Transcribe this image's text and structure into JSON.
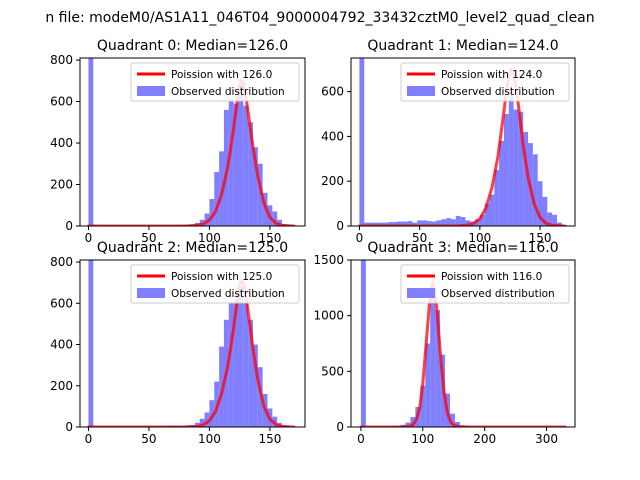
{
  "page": {
    "suptitle": "n file: modeM0/AS1A11_046T04_9000004792_33432cztM0_level2_quad_clean"
  },
  "colors": {
    "histogram": "#7f7fff",
    "poisson": "#ff0000",
    "axes": "#000000",
    "background": "#ffffff"
  },
  "chart_data": [
    {
      "type": "bar",
      "title": "Quadrant 0: Median=126.0",
      "xlabel": "",
      "ylabel": "",
      "xlim": [
        -7,
        179
      ],
      "ylim": [
        0,
        810
      ],
      "xticks": [
        0,
        50,
        100,
        150
      ],
      "yticks": [
        0,
        200,
        400,
        600,
        800
      ],
      "grid": false,
      "legend": {
        "placement": "top-right",
        "entries": [
          "Poission with 126.0",
          "Observed distribution"
        ]
      },
      "series": [
        {
          "name": "Poission with 126.0",
          "kind": "line",
          "x": [
            0,
            80,
            90,
            95,
            100,
            105,
            110,
            115,
            118,
            120,
            122,
            124,
            126,
            128,
            130,
            132,
            134,
            136,
            140,
            145,
            150,
            155,
            160,
            170
          ],
          "y": [
            0,
            0,
            3,
            10,
            28,
            70,
            150,
            280,
            390,
            470,
            560,
            650,
            700,
            690,
            630,
            550,
            460,
            380,
            240,
            110,
            42,
            13,
            3,
            0
          ]
        },
        {
          "name": "Observed distribution",
          "kind": "histogram",
          "bin_width": 4,
          "x": [
            0,
            4,
            8,
            12,
            16,
            20,
            24,
            28,
            32,
            36,
            40,
            44,
            48,
            52,
            56,
            60,
            64,
            68,
            72,
            76,
            80,
            84,
            88,
            92,
            96,
            100,
            104,
            108,
            112,
            116,
            120,
            124,
            128,
            132,
            136,
            140,
            144,
            148,
            152,
            156,
            160,
            164,
            168
          ],
          "y": [
            810,
            3,
            3,
            3,
            3,
            3,
            3,
            3,
            3,
            3,
            3,
            3,
            3,
            3,
            3,
            3,
            3,
            3,
            4,
            4,
            5,
            8,
            15,
            30,
            60,
            130,
            260,
            360,
            560,
            600,
            590,
            680,
            580,
            500,
            380,
            300,
            160,
            100,
            70,
            30,
            10,
            4,
            2
          ]
        }
      ]
    },
    {
      "type": "bar",
      "title": "Quadrant 1: Median=124.0",
      "xlabel": "",
      "ylabel": "",
      "xlim": [
        -7,
        179
      ],
      "ylim": [
        0,
        750
      ],
      "xticks": [
        0,
        50,
        100,
        150
      ],
      "yticks": [
        0,
        200,
        400,
        600
      ],
      "grid": false,
      "legend": {
        "placement": "top-right",
        "entries": [
          "Poission with 124.0",
          "Observed distribution"
        ]
      },
      "series": [
        {
          "name": "Poission with 124.0",
          "kind": "line",
          "x": [
            0,
            80,
            90,
            95,
            100,
            105,
            110,
            115,
            118,
            120,
            122,
            124,
            126,
            128,
            130,
            132,
            134,
            136,
            140,
            145,
            150,
            155,
            160,
            170
          ],
          "y": [
            0,
            0,
            4,
            12,
            32,
            80,
            170,
            310,
            430,
            510,
            600,
            670,
            700,
            680,
            620,
            540,
            450,
            360,
            220,
            100,
            38,
            12,
            3,
            0
          ]
        },
        {
          "name": "Observed distribution",
          "kind": "histogram",
          "bin_width": 4,
          "x": [
            0,
            4,
            8,
            12,
            16,
            20,
            24,
            28,
            32,
            36,
            40,
            44,
            48,
            52,
            56,
            60,
            64,
            68,
            72,
            76,
            80,
            84,
            88,
            92,
            96,
            100,
            104,
            108,
            112,
            116,
            120,
            124,
            128,
            132,
            136,
            140,
            144,
            148,
            152,
            156,
            160,
            164,
            168
          ],
          "y": [
            750,
            15,
            15,
            15,
            15,
            15,
            18,
            18,
            20,
            20,
            22,
            15,
            25,
            25,
            22,
            20,
            25,
            30,
            35,
            30,
            45,
            40,
            25,
            20,
            30,
            50,
            100,
            140,
            250,
            380,
            500,
            610,
            520,
            510,
            420,
            370,
            320,
            200,
            130,
            60,
            50,
            15,
            5
          ]
        }
      ]
    },
    {
      "type": "bar",
      "title": "Quadrant 2: Median=125.0",
      "xlabel": "",
      "ylabel": "",
      "xlim": [
        -7,
        179
      ],
      "ylim": [
        0,
        810
      ],
      "xticks": [
        0,
        50,
        100,
        150
      ],
      "yticks": [
        0,
        200,
        400,
        600,
        800
      ],
      "grid": false,
      "legend": {
        "placement": "top-right",
        "entries": [
          "Poission with 125.0",
          "Observed distribution"
        ]
      },
      "series": [
        {
          "name": "Poission with 125.0",
          "kind": "line",
          "x": [
            0,
            80,
            90,
            95,
            100,
            105,
            110,
            115,
            118,
            120,
            122,
            124,
            126,
            128,
            130,
            132,
            134,
            136,
            140,
            145,
            150,
            155,
            160,
            170
          ],
          "y": [
            0,
            0,
            3,
            10,
            30,
            75,
            160,
            290,
            400,
            480,
            570,
            660,
            710,
            700,
            640,
            560,
            470,
            380,
            230,
            100,
            38,
            12,
            3,
            0
          ]
        },
        {
          "name": "Observed distribution",
          "kind": "histogram",
          "bin_width": 4,
          "x": [
            0,
            4,
            8,
            12,
            16,
            20,
            24,
            28,
            32,
            36,
            40,
            44,
            48,
            52,
            56,
            60,
            64,
            68,
            72,
            76,
            80,
            84,
            88,
            92,
            96,
            100,
            104,
            108,
            112,
            116,
            120,
            124,
            128,
            132,
            136,
            140,
            144,
            148,
            152,
            156,
            160,
            164,
            168
          ],
          "y": [
            810,
            3,
            3,
            3,
            3,
            3,
            3,
            3,
            3,
            3,
            3,
            3,
            3,
            3,
            3,
            3,
            5,
            5,
            5,
            5,
            8,
            10,
            20,
            40,
            70,
            130,
            220,
            390,
            520,
            600,
            620,
            680,
            600,
            520,
            400,
            290,
            160,
            90,
            50,
            20,
            8,
            3,
            2
          ]
        }
      ]
    },
    {
      "type": "bar",
      "title": "Quadrant 3: Median=116.0",
      "xlabel": "",
      "ylabel": "",
      "xlim": [
        -16,
        346
      ],
      "ylim": [
        0,
        1500
      ],
      "xticks": [
        0,
        100,
        200,
        300
      ],
      "yticks": [
        0,
        500,
        1000,
        1500
      ],
      "grid": false,
      "legend": {
        "placement": "top-right",
        "entries": [
          "Poission with 116.0",
          "Observed distribution"
        ]
      },
      "series": [
        {
          "name": "Poission with 116.0",
          "kind": "line",
          "x": [
            0,
            70,
            80,
            85,
            90,
            95,
            100,
            105,
            110,
            113,
            116,
            119,
            122,
            125,
            130,
            135,
            140,
            145,
            150,
            160,
            180,
            330
          ],
          "y": [
            0,
            0,
            8,
            25,
            70,
            170,
            390,
            720,
            1060,
            1230,
            1300,
            1250,
            1100,
            900,
            560,
            290,
            125,
            45,
            15,
            2,
            0,
            0
          ]
        },
        {
          "name": "Observed distribution",
          "kind": "histogram",
          "bin_width": 8,
          "x": [
            0,
            8,
            16,
            24,
            32,
            40,
            48,
            56,
            64,
            72,
            80,
            88,
            96,
            104,
            112,
            120,
            128,
            136,
            144,
            152,
            160,
            168,
            176,
            184,
            192,
            200,
            208,
            216,
            224,
            232,
            240,
            248,
            256,
            264,
            272,
            280,
            288,
            296,
            304,
            312,
            320
          ],
          "y": [
            1500,
            3,
            3,
            3,
            3,
            3,
            3,
            10,
            20,
            40,
            90,
            180,
            370,
            750,
            1200,
            1050,
            650,
            300,
            120,
            45,
            15,
            5,
            3,
            2,
            2,
            2,
            2,
            2,
            2,
            2,
            2,
            2,
            2,
            2,
            2,
            2,
            2,
            2,
            2,
            2,
            2
          ]
        }
      ]
    }
  ]
}
